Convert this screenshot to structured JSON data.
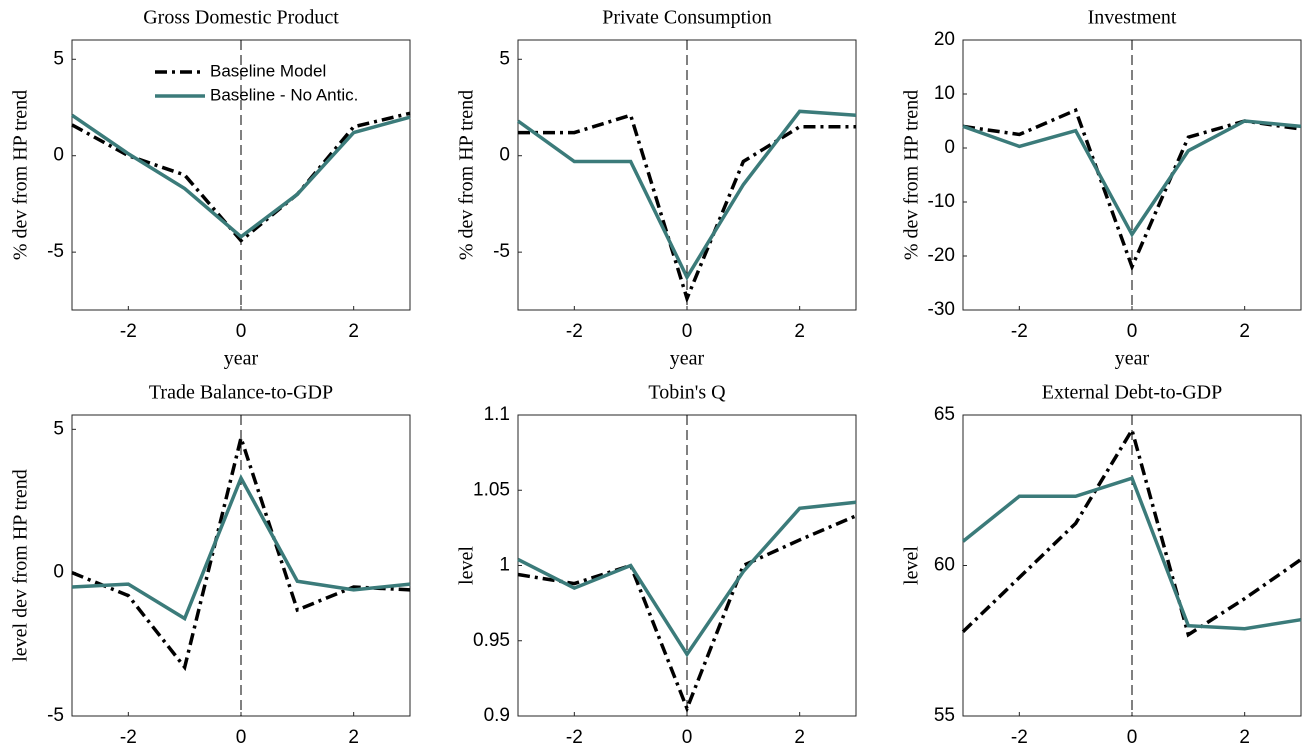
{
  "chart_data": [
    {
      "type": "line",
      "title": "Gross Domestic Product",
      "xlabel": "year",
      "ylabel": "% dev from HP trend",
      "x": [
        -3,
        -2,
        -1,
        0,
        1,
        2,
        3
      ],
      "xlim": [
        -3,
        3
      ],
      "xticks": [
        -2,
        0,
        2
      ],
      "ylim": [
        -8,
        6
      ],
      "yticks": [
        -5,
        0,
        5
      ],
      "vline": 0,
      "series": [
        {
          "name": "Baseline Model",
          "color": "#000000",
          "dash": "dashdot",
          "values": [
            1.6,
            0,
            -1.0,
            -4.4,
            -2.0,
            1.5,
            2.2
          ]
        },
        {
          "name": "Baseline - No Antic.",
          "color": "#3b7b7a",
          "dash": "solid",
          "values": [
            2.1,
            0.1,
            -1.7,
            -4.2,
            -2.0,
            1.2,
            2.0
          ]
        }
      ]
    },
    {
      "type": "line",
      "title": "Private Consumption",
      "xlabel": "year",
      "ylabel": "% dev from HP trend",
      "x": [
        -3,
        -2,
        -1,
        0,
        1,
        2,
        3
      ],
      "xlim": [
        -3,
        3
      ],
      "xticks": [
        -2,
        0,
        2
      ],
      "ylim": [
        -8,
        6
      ],
      "yticks": [
        -5,
        0,
        5
      ],
      "vline": 0,
      "series": [
        {
          "color": "#000000",
          "dash": "dashdot",
          "values": [
            1.2,
            1.2,
            2.1,
            -7.4,
            -0.3,
            1.5,
            1.5
          ]
        },
        {
          "color": "#3b7b7a",
          "dash": "solid",
          "values": [
            1.8,
            -0.3,
            -0.3,
            -6.3,
            -1.5,
            2.3,
            2.1
          ]
        }
      ]
    },
    {
      "type": "line",
      "title": "Investment",
      "xlabel": "year",
      "ylabel": "% dev from HP trend",
      "x": [
        -3,
        -2,
        -1,
        0,
        1,
        2,
        3
      ],
      "xlim": [
        -3,
        3
      ],
      "xticks": [
        -2,
        0,
        2
      ],
      "ylim": [
        -30,
        20
      ],
      "yticks": [
        -30,
        -20,
        -10,
        0,
        10,
        20
      ],
      "vline": 0,
      "series": [
        {
          "color": "#000000",
          "dash": "dashdot",
          "values": [
            4,
            2.5,
            7,
            -22,
            2,
            5,
            3.5
          ]
        },
        {
          "color": "#3b7b7a",
          "dash": "solid",
          "values": [
            4,
            0.3,
            3.2,
            -16,
            -0.5,
            5,
            4
          ]
        }
      ]
    },
    {
      "type": "line",
      "title": "Trade Balance-to-GDP",
      "xlabel": "year",
      "ylabel": "level dev from HP trend",
      "x": [
        -3,
        -2,
        -1,
        0,
        1,
        2,
        3
      ],
      "xlim": [
        -3,
        3
      ],
      "xticks": [
        -2,
        0,
        2
      ],
      "ylim": [
        -5,
        5.5
      ],
      "yticks": [
        -5,
        0,
        5
      ],
      "vline": 0,
      "series": [
        {
          "color": "#000000",
          "dash": "dashdot",
          "values": [
            0,
            -0.8,
            -3.3,
            4.7,
            -1.3,
            -0.5,
            -0.6
          ]
        },
        {
          "color": "#3b7b7a",
          "dash": "solid",
          "values": [
            -0.5,
            -0.4,
            -1.6,
            3.3,
            -0.3,
            -0.6,
            -0.4
          ]
        }
      ]
    },
    {
      "type": "line",
      "title": "Tobin's Q",
      "xlabel": "year",
      "ylabel": "level",
      "x": [
        -3,
        -2,
        -1,
        0,
        1,
        2,
        3
      ],
      "xlim": [
        -3,
        3
      ],
      "xticks": [
        -2,
        0,
        2
      ],
      "ylim": [
        0.9,
        1.1
      ],
      "yticks": [
        0.9,
        0.95,
        1,
        1.05,
        1.1
      ],
      "vline": 0,
      "series": [
        {
          "color": "#000000",
          "dash": "dashdot",
          "values": [
            0.994,
            0.988,
            1.0,
            0.905,
            1.0,
            1.017,
            1.033
          ]
        },
        {
          "color": "#3b7b7a",
          "dash": "solid",
          "values": [
            1.004,
            0.985,
            1.0,
            0.941,
            0.996,
            1.038,
            1.042
          ]
        }
      ]
    },
    {
      "type": "line",
      "title": "External Debt-to-GDP",
      "xlabel": "year",
      "ylabel": "level",
      "x": [
        -3,
        -2,
        -1,
        0,
        1,
        2,
        3
      ],
      "xlim": [
        -3,
        3
      ],
      "xticks": [
        -2,
        0,
        2
      ],
      "ylim": [
        55,
        65
      ],
      "yticks": [
        55,
        60,
        65
      ],
      "vline": 0,
      "series": [
        {
          "color": "#000000",
          "dash": "dashdot",
          "values": [
            57.8,
            59.6,
            61.4,
            64.5,
            57.7,
            58.9,
            60.2
          ]
        },
        {
          "color": "#3b7b7a",
          "dash": "solid",
          "values": [
            60.8,
            62.3,
            62.3,
            62.9,
            58.0,
            57.9,
            58.2
          ]
        }
      ]
    }
  ]
}
